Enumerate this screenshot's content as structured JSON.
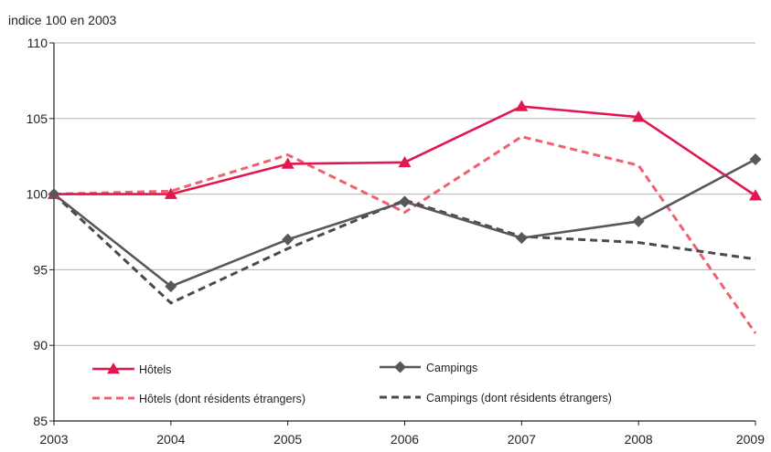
{
  "chart_data": {
    "type": "line",
    "title": "",
    "unit_label": "indice 100 en 2003",
    "x": [
      "2003",
      "2004",
      "2005",
      "2006",
      "2007",
      "2008",
      "2009"
    ],
    "ylim": [
      85,
      110
    ],
    "y_ticks": [
      "85",
      "90",
      "95",
      "100",
      "105",
      "110"
    ],
    "grid": true,
    "legend_placement": "bottom-left inside plot, two columns",
    "series": [
      {
        "name": "Hôtels",
        "values": [
          100,
          100,
          102.0,
          102.1,
          105.8,
          105.1,
          99.9
        ],
        "color": "#e0184f",
        "style": "solid",
        "marker": "triangle"
      },
      {
        "name": "Campings",
        "values": [
          100,
          93.9,
          97.0,
          99.5,
          97.1,
          98.2,
          102.3
        ],
        "color": "#58585a",
        "style": "solid",
        "marker": "diamond"
      },
      {
        "name": "Hôtels (dont résidents étrangers)",
        "values": [
          100,
          100.2,
          102.6,
          98.8,
          103.8,
          101.9,
          90.8
        ],
        "color": "#f0606e",
        "style": "dashed",
        "marker": "none"
      },
      {
        "name": "Campings (dont résidents étrangers)",
        "values": [
          100,
          92.8,
          96.4,
          99.6,
          97.2,
          96.8,
          95.7
        ],
        "color": "#4a4a4c",
        "style": "dashed",
        "marker": "none"
      }
    ]
  }
}
